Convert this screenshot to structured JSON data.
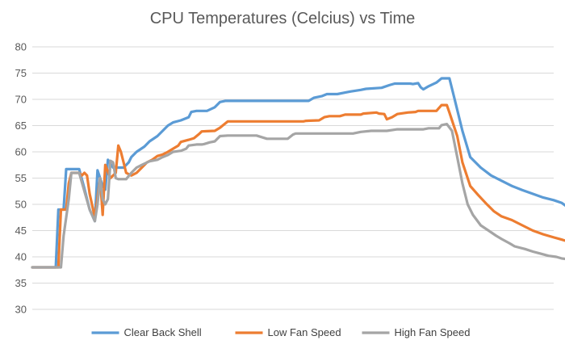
{
  "chart_data": {
    "type": "line",
    "title": "CPU Temperatures (Celcius) vs Time",
    "xlabel": "",
    "ylabel": "",
    "ylim": [
      30,
      80
    ],
    "yticks": [
      30,
      35,
      40,
      45,
      50,
      55,
      60,
      65,
      70,
      75,
      80
    ],
    "grid": true,
    "legend_position": "bottom",
    "x_count": 201,
    "series": [
      {
        "name": "Clear Back Shell",
        "color": "#5b9bd5",
        "points": [
          [
            0,
            38
          ],
          [
            9,
            38
          ],
          [
            10,
            49
          ],
          [
            12,
            49
          ],
          [
            13,
            56.7
          ],
          [
            18,
            56.7
          ],
          [
            20,
            53
          ],
          [
            22,
            49
          ],
          [
            24,
            46.8
          ],
          [
            25,
            56.5
          ],
          [
            26,
            55
          ],
          [
            27,
            53.5
          ],
          [
            28,
            52.8
          ],
          [
            29,
            58.5
          ],
          [
            31,
            57
          ],
          [
            32,
            57
          ],
          [
            35,
            57
          ],
          [
            37,
            58
          ],
          [
            38,
            59
          ],
          [
            40,
            60
          ],
          [
            43,
            61
          ],
          [
            45,
            62
          ],
          [
            48,
            63
          ],
          [
            50,
            64
          ],
          [
            52,
            65
          ],
          [
            54,
            65.6
          ],
          [
            57,
            66
          ],
          [
            60,
            66.6
          ],
          [
            61,
            67.6
          ],
          [
            63,
            67.8
          ],
          [
            67,
            67.8
          ],
          [
            70,
            68.5
          ],
          [
            72,
            69.5
          ],
          [
            74,
            69.7
          ],
          [
            106,
            69.7
          ],
          [
            108,
            70.3
          ],
          [
            111,
            70.6
          ],
          [
            113,
            71
          ],
          [
            117,
            71
          ],
          [
            120,
            71.3
          ],
          [
            122,
            71.5
          ],
          [
            126,
            71.8
          ],
          [
            128,
            72
          ],
          [
            134,
            72.2
          ],
          [
            137,
            72.7
          ],
          [
            139,
            73
          ],
          [
            145,
            73
          ],
          [
            146,
            72.9
          ],
          [
            147,
            73
          ],
          [
            148,
            73.1
          ],
          [
            149,
            72.3
          ],
          [
            150,
            71.9
          ],
          [
            152,
            72.5
          ],
          [
            155,
            73.2
          ],
          [
            157,
            74
          ],
          [
            160,
            74
          ],
          [
            162,
            70
          ],
          [
            165,
            64
          ],
          [
            168,
            59
          ],
          [
            172,
            57
          ],
          [
            176,
            55.5
          ],
          [
            180,
            54.5
          ],
          [
            184,
            53.5
          ],
          [
            188,
            52.7
          ],
          [
            192,
            52
          ],
          [
            196,
            51.3
          ],
          [
            200,
            50.8
          ],
          [
            203,
            50.3
          ],
          [
            205,
            49.6
          ],
          [
            208,
            49.2
          ]
        ]
      },
      {
        "name": "Low Fan Speed",
        "color": "#ed7d31",
        "points": [
          [
            0,
            38
          ],
          [
            10,
            38
          ],
          [
            11,
            49
          ],
          [
            13,
            49
          ],
          [
            14,
            54
          ],
          [
            15,
            56
          ],
          [
            18,
            56
          ],
          [
            19,
            55.5
          ],
          [
            20,
            56
          ],
          [
            21,
            55.5
          ],
          [
            22,
            52
          ],
          [
            24,
            47.5
          ],
          [
            26,
            55
          ],
          [
            27,
            48
          ],
          [
            28,
            57.5
          ],
          [
            30,
            55
          ],
          [
            31,
            55.5
          ],
          [
            32,
            56
          ],
          [
            33,
            61.2
          ],
          [
            34,
            60
          ],
          [
            35,
            58
          ],
          [
            36,
            56
          ],
          [
            38,
            55.5
          ],
          [
            40,
            56
          ],
          [
            42,
            57
          ],
          [
            44,
            58
          ],
          [
            46,
            58.5
          ],
          [
            48,
            59.2
          ],
          [
            50,
            59.5
          ],
          [
            52,
            60
          ],
          [
            54,
            60.6
          ],
          [
            56,
            61.2
          ],
          [
            57,
            61.9
          ],
          [
            60,
            62.3
          ],
          [
            62,
            62.6
          ],
          [
            64,
            63.4
          ],
          [
            65,
            63.9
          ],
          [
            70,
            64
          ],
          [
            72,
            64.6
          ],
          [
            73,
            65
          ],
          [
            75,
            65.8
          ],
          [
            104,
            65.8
          ],
          [
            105,
            65.9
          ],
          [
            110,
            66
          ],
          [
            112,
            66.6
          ],
          [
            114,
            66.8
          ],
          [
            118,
            66.8
          ],
          [
            120,
            67.1
          ],
          [
            126,
            67.1
          ],
          [
            127,
            67.3
          ],
          [
            132,
            67.5
          ],
          [
            133,
            67.3
          ],
          [
            135,
            67.2
          ],
          [
            136,
            66.2
          ],
          [
            138,
            66.6
          ],
          [
            140,
            67.2
          ],
          [
            144,
            67.5
          ],
          [
            147,
            67.6
          ],
          [
            148,
            67.8
          ],
          [
            155,
            67.8
          ],
          [
            157,
            68.9
          ],
          [
            159,
            68.9
          ],
          [
            160,
            67.5
          ],
          [
            163,
            63
          ],
          [
            165,
            58
          ],
          [
            168,
            53.5
          ],
          [
            171,
            51.8
          ],
          [
            174,
            50.2
          ],
          [
            177,
            48.7
          ],
          [
            180,
            47.7
          ],
          [
            184,
            47
          ],
          [
            188,
            46
          ],
          [
            192,
            45
          ],
          [
            196,
            44.3
          ],
          [
            200,
            43.7
          ],
          [
            203,
            43.3
          ],
          [
            205,
            43
          ],
          [
            206,
            42.5
          ],
          [
            208,
            42.3
          ]
        ]
      },
      {
        "name": "High Fan Speed",
        "color": "#a5a5a5",
        "points": [
          [
            0,
            38
          ],
          [
            11,
            38
          ],
          [
            12,
            44
          ],
          [
            14,
            51
          ],
          [
            15,
            56
          ],
          [
            18,
            56
          ],
          [
            20,
            52.5
          ],
          [
            22,
            49
          ],
          [
            24,
            46.8
          ],
          [
            25,
            50
          ],
          [
            26,
            55
          ],
          [
            27,
            51
          ],
          [
            28,
            50
          ],
          [
            29,
            51
          ],
          [
            30,
            58.3
          ],
          [
            31,
            58
          ],
          [
            32,
            55
          ],
          [
            33,
            54.8
          ],
          [
            36,
            54.8
          ],
          [
            38,
            56
          ],
          [
            40,
            57
          ],
          [
            42,
            57.5
          ],
          [
            45,
            58.2
          ],
          [
            48,
            58.5
          ],
          [
            50,
            59
          ],
          [
            52,
            59.4
          ],
          [
            54,
            60
          ],
          [
            57,
            60.2
          ],
          [
            59,
            60.6
          ],
          [
            60,
            61.2
          ],
          [
            63,
            61.4
          ],
          [
            65,
            61.4
          ],
          [
            66,
            61.5
          ],
          [
            68,
            61.8
          ],
          [
            70,
            62
          ],
          [
            72,
            63
          ],
          [
            75,
            63.1
          ],
          [
            86,
            63.1
          ],
          [
            88,
            62.8
          ],
          [
            90,
            62.5
          ],
          [
            98,
            62.5
          ],
          [
            100,
            63.3
          ],
          [
            101,
            63.5
          ],
          [
            123,
            63.5
          ],
          [
            126,
            63.8
          ],
          [
            130,
            64
          ],
          [
            136,
            64
          ],
          [
            140,
            64.3
          ],
          [
            150,
            64.3
          ],
          [
            152,
            64.5
          ],
          [
            156,
            64.5
          ],
          [
            157,
            65.1
          ],
          [
            159,
            65.3
          ],
          [
            161,
            64
          ],
          [
            163,
            59
          ],
          [
            165,
            54
          ],
          [
            167,
            50
          ],
          [
            169,
            48
          ],
          [
            172,
            46
          ],
          [
            175,
            45
          ],
          [
            178,
            44
          ],
          [
            180,
            43.4
          ],
          [
            183,
            42.6
          ],
          [
            185,
            42
          ],
          [
            189,
            41.5
          ],
          [
            192,
            41
          ],
          [
            195,
            40.6
          ],
          [
            198,
            40.2
          ],
          [
            201,
            40
          ],
          [
            203,
            39.7
          ],
          [
            206,
            39.5
          ],
          [
            208,
            39.3
          ]
        ]
      }
    ]
  }
}
